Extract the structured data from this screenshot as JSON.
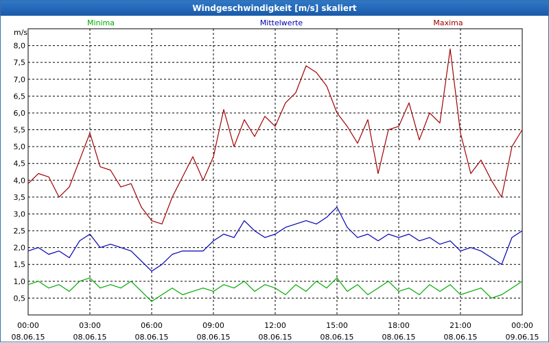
{
  "window": {
    "title": "Windgeschwindigkeit [m/s] skaliert"
  },
  "chart_data": {
    "type": "line",
    "title": "Windgeschwindigkeit [m/s] skaliert",
    "ylabel": "m/s",
    "xlabel": "",
    "ylim": [
      0,
      8.5
    ],
    "xlim": [
      0,
      24
    ],
    "yticks": [
      0.5,
      1.0,
      1.5,
      2.0,
      2.5,
      3.0,
      3.5,
      4.0,
      4.5,
      5.0,
      5.5,
      6.0,
      6.5,
      7.0,
      7.5,
      8.0
    ],
    "ytick_labels": [
      "0,5",
      "1,0",
      "1,5",
      "2,0",
      "2,5",
      "3,0",
      "3,5",
      "4,0",
      "4,5",
      "5,0",
      "5,5",
      "6,0",
      "6,5",
      "7,0",
      "7,5",
      "8,0"
    ],
    "xticks": [
      0,
      3,
      6,
      9,
      12,
      15,
      18,
      21,
      24
    ],
    "xtick_time_labels": [
      "00:00",
      "03:00",
      "06:00",
      "09:00",
      "12:00",
      "15:00",
      "18:00",
      "21:00",
      "00:00"
    ],
    "xtick_date_labels": [
      "08.06.15",
      "08.06.15",
      "08.06.15",
      "08.06.15",
      "08.06.15",
      "08.06.15",
      "08.06.15",
      "08.06.15",
      "09.06.15"
    ],
    "grid": true,
    "legend": "top",
    "series": [
      {
        "name": "Minima",
        "color": "#00aa00",
        "x": [
          0,
          0.5,
          1,
          1.5,
          2,
          2.5,
          3,
          3.5,
          4,
          4.5,
          5,
          5.5,
          6,
          6.5,
          7,
          7.5,
          8,
          8.5,
          9,
          9.5,
          10,
          10.5,
          11,
          11.5,
          12,
          12.5,
          13,
          13.5,
          14,
          14.5,
          15,
          15.5,
          16,
          16.5,
          17,
          17.5,
          18,
          18.5,
          19,
          19.5,
          20,
          20.5,
          21,
          21.5,
          22,
          22.5,
          23,
          23.5,
          24
        ],
        "values": [
          0.9,
          1.0,
          0.8,
          0.9,
          0.7,
          1.0,
          1.1,
          0.8,
          0.9,
          0.8,
          1.0,
          0.7,
          0.4,
          0.6,
          0.8,
          0.6,
          0.7,
          0.8,
          0.7,
          0.9,
          0.8,
          1.0,
          0.7,
          0.9,
          0.8,
          0.6,
          0.9,
          0.7,
          1.0,
          0.8,
          1.1,
          0.7,
          0.9,
          0.6,
          0.8,
          1.0,
          0.7,
          0.8,
          0.6,
          0.9,
          0.7,
          0.9,
          0.6,
          0.7,
          0.8,
          0.5,
          0.6,
          0.8,
          1.0
        ]
      },
      {
        "name": "Mittelwerte",
        "color": "#0000b4",
        "x": [
          0,
          0.5,
          1,
          1.5,
          2,
          2.5,
          3,
          3.5,
          4,
          4.5,
          5,
          5.5,
          6,
          6.5,
          7,
          7.5,
          8,
          8.5,
          9,
          9.5,
          10,
          10.5,
          11,
          11.5,
          12,
          12.5,
          13,
          13.5,
          14,
          14.5,
          15,
          15.5,
          16,
          16.5,
          17,
          17.5,
          18,
          18.5,
          19,
          19.5,
          20,
          20.5,
          21,
          21.5,
          22,
          22.5,
          23,
          23.5,
          24
        ],
        "values": [
          1.9,
          2.0,
          1.8,
          1.9,
          1.7,
          2.2,
          2.4,
          2.0,
          2.1,
          2.0,
          1.9,
          1.6,
          1.3,
          1.5,
          1.8,
          1.9,
          1.9,
          1.9,
          2.2,
          2.4,
          2.3,
          2.8,
          2.5,
          2.3,
          2.4,
          2.6,
          2.7,
          2.8,
          2.7,
          2.9,
          3.2,
          2.6,
          2.3,
          2.4,
          2.2,
          2.4,
          2.3,
          2.4,
          2.2,
          2.3,
          2.1,
          2.2,
          1.9,
          2.0,
          1.9,
          1.7,
          1.5,
          2.3,
          2.5
        ]
      },
      {
        "name": "Maxima",
        "color": "#a00000",
        "x": [
          0,
          0.5,
          1,
          1.5,
          2,
          2.5,
          3,
          3.5,
          4,
          4.5,
          5,
          5.5,
          6,
          6.5,
          7,
          7.5,
          8,
          8.5,
          9,
          9.5,
          10,
          10.5,
          11,
          11.5,
          12,
          12.5,
          13,
          13.5,
          14,
          14.5,
          15,
          15.5,
          16,
          16.5,
          17,
          17.5,
          18,
          18.5,
          19,
          19.5,
          20,
          20.5,
          21,
          21.5,
          22,
          22.5,
          23,
          23.5,
          24
        ],
        "values": [
          3.9,
          4.2,
          4.1,
          3.5,
          3.8,
          4.6,
          5.4,
          4.4,
          4.3,
          3.8,
          3.9,
          3.2,
          2.8,
          2.7,
          3.5,
          4.1,
          4.7,
          4.0,
          4.7,
          6.1,
          5.0,
          5.8,
          5.3,
          5.9,
          5.6,
          6.3,
          6.6,
          7.4,
          7.2,
          6.8,
          6.0,
          5.6,
          5.1,
          5.8,
          4.2,
          5.5,
          5.6,
          6.3,
          5.2,
          6.0,
          5.7,
          7.9,
          5.4,
          4.2,
          4.6,
          4.0,
          3.5,
          5.0,
          5.5
        ]
      }
    ]
  }
}
